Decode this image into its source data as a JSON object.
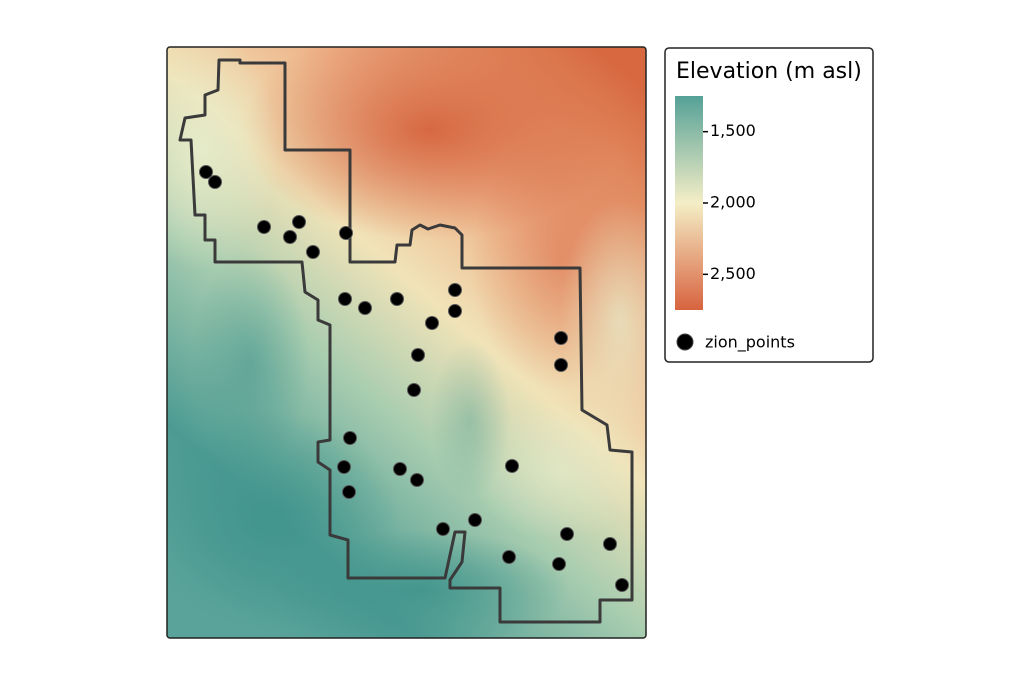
{
  "chart_data": {
    "type": "map",
    "legend_title": "Elevation (m asl)",
    "colorbar_lim": [
      1250,
      2750
    ],
    "colorbar_ticks": [
      {
        "value": 1500,
        "label": "1,500"
      },
      {
        "value": 2000,
        "label": "2,000"
      },
      {
        "value": 2500,
        "label": "2,500"
      }
    ],
    "colorbar_colors": [
      "#55a197",
      "#f4eec6",
      "#d8633f"
    ],
    "points_name": "zion_points",
    "points_color": "#000000"
  }
}
